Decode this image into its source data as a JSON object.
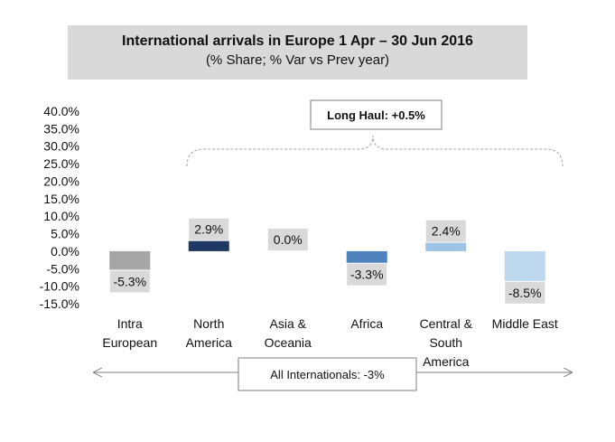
{
  "chart_data": {
    "type": "bar",
    "title": "International arrivals in Europe 1 Apr – 30 Jun 2016",
    "subtitle": "(% Share; % Var vs Prev year)",
    "categories": [
      [
        "Intra",
        "European"
      ],
      [
        "North",
        "America"
      ],
      [
        "Asia &",
        "Oceania"
      ],
      [
        "Africa"
      ],
      [
        "Central &",
        "South",
        "America"
      ],
      [
        "Middle East"
      ]
    ],
    "values": [
      -5.3,
      2.9,
      0.0,
      -3.3,
      2.4,
      -8.5
    ],
    "value_labels": [
      "-5.3%",
      "2.9%",
      "0.0%",
      "-3.3%",
      "2.4%",
      "-8.5%"
    ],
    "bar_colors": [
      "#a6a6a6",
      "#1f3864",
      "#1f3864",
      "#4f81bd",
      "#9dc3e6",
      "#bdd7ee"
    ],
    "ylim": [
      -15,
      40
    ],
    "yticks": [
      40,
      35,
      30,
      25,
      20,
      15,
      10,
      5,
      0,
      -5,
      -10,
      -15
    ],
    "ytick_labels": [
      "40.0%",
      "35.0%",
      "30.0%",
      "25.0%",
      "20.0%",
      "15.0%",
      "10.0%",
      "5.0%",
      "0.0%",
      "-5.0%",
      "-10.0%",
      "-15.0%"
    ],
    "grid": false,
    "annotations": {
      "long_haul": "Long Haul: +0.5%",
      "all_internationals": "All Internationals: -3%"
    }
  }
}
